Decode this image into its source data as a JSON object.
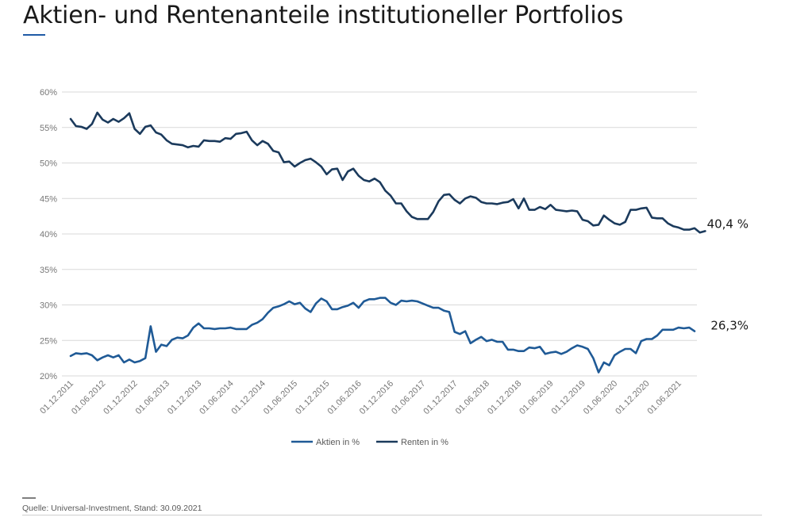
{
  "header": {
    "title": "Aktien- und Rentenanteile institutioneller Portfolios"
  },
  "footer": {
    "source": "Quelle: Universal-Investment, Stand: 30.09.2021"
  },
  "chart_data": {
    "type": "line",
    "ylabel": "",
    "xlabel": "",
    "ylim": [
      20,
      60
    ],
    "y_ticks": [
      "60%",
      "55%",
      "50%",
      "45%",
      "40%",
      "35%",
      "30%",
      "25%",
      "20%"
    ],
    "y_tick_values": [
      60,
      55,
      50,
      45,
      40,
      35,
      30,
      25,
      20
    ],
    "x_ticks": [
      "01.12.2011",
      "01.06.2012",
      "01.12.2012",
      "01.06.2013",
      "01.12.2013",
      "01.06.2014",
      "01.12.2014",
      "01.06.2015",
      "01.12.2015",
      "01.06.2016",
      "01.12.2016",
      "01.06.2017",
      "01.12.2017",
      "01.06.2018",
      "01.12.2018",
      "01.06.2019",
      "01.12.2019",
      "01.06.2020",
      "01.12.2020",
      "01.06.2021"
    ],
    "x_start": "2011-12",
    "x_end": "2021-09",
    "frequency": "monthly",
    "grid": true,
    "legend_position": "bottom",
    "series": [
      {
        "name": "Aktien in %",
        "color": "#1f5a96",
        "end_label": "26,3%",
        "values": [
          22.8,
          23.2,
          23.1,
          23.2,
          22.9,
          22.2,
          22.6,
          22.9,
          22.6,
          22.9,
          21.9,
          22.3,
          21.9,
          22.1,
          22.5,
          27.0,
          23.4,
          24.4,
          24.2,
          25.1,
          25.4,
          25.3,
          25.7,
          26.8,
          27.4,
          26.7,
          26.7,
          26.6,
          26.7,
          26.7,
          26.8,
          26.6,
          26.6,
          26.6,
          27.2,
          27.5,
          28.0,
          28.9,
          29.6,
          29.8,
          30.1,
          30.5,
          30.1,
          30.3,
          29.5,
          29.0,
          30.2,
          30.9,
          30.5,
          29.4,
          29.4,
          29.7,
          29.9,
          30.3,
          29.6,
          30.5,
          30.8,
          30.8,
          31.0,
          31.0,
          30.3,
          30.0,
          30.6,
          30.5,
          30.6,
          30.5,
          30.2,
          29.9,
          29.6,
          29.6,
          29.2,
          29.0,
          26.2,
          25.9,
          26.3,
          24.6,
          25.1,
          25.5,
          24.9,
          25.1,
          24.8,
          24.8,
          23.7,
          23.7,
          23.5,
          23.5,
          24.0,
          23.9,
          24.1,
          23.1,
          23.3,
          23.4,
          23.1,
          23.4,
          23.9,
          24.3,
          24.1,
          23.8,
          22.5,
          20.5,
          21.9,
          21.5,
          22.9,
          23.4,
          23.8,
          23.8,
          23.2,
          24.9,
          25.2,
          25.2,
          25.7,
          26.5,
          26.5,
          26.5,
          26.8,
          26.7,
          26.8,
          26.3
        ]
      },
      {
        "name": "Renten in %",
        "color": "#1b3a5c",
        "end_label": "40,4 %",
        "values": [
          56.2,
          55.2,
          55.1,
          54.8,
          55.5,
          57.1,
          56.1,
          55.7,
          56.2,
          55.8,
          56.3,
          57.0,
          54.8,
          54.1,
          55.1,
          55.3,
          54.3,
          54.0,
          53.2,
          52.7,
          52.6,
          52.5,
          52.2,
          52.4,
          52.3,
          53.2,
          53.1,
          53.1,
          53.0,
          53.5,
          53.4,
          54.1,
          54.2,
          54.4,
          53.2,
          52.5,
          53.1,
          52.7,
          51.7,
          51.5,
          50.1,
          50.2,
          49.5,
          50.0,
          50.4,
          50.6,
          50.1,
          49.5,
          48.4,
          49.1,
          49.2,
          47.6,
          48.8,
          49.2,
          48.2,
          47.6,
          47.4,
          47.8,
          47.3,
          46.1,
          45.4,
          44.3,
          44.3,
          43.2,
          42.4,
          42.1,
          42.1,
          42.1,
          43.1,
          44.6,
          45.5,
          45.6,
          44.8,
          44.3,
          45.0,
          45.3,
          45.1,
          44.5,
          44.3,
          44.3,
          44.2,
          44.4,
          44.5,
          44.9,
          43.6,
          45.0,
          43.4,
          43.4,
          43.8,
          43.5,
          44.1,
          43.4,
          43.3,
          43.2,
          43.3,
          43.2,
          42.0,
          41.8,
          41.2,
          41.3,
          42.6,
          42.0,
          41.5,
          41.3,
          41.7,
          43.4,
          43.4,
          43.6,
          43.7,
          42.3,
          42.2,
          42.2,
          41.5,
          41.1,
          40.9,
          40.6,
          40.6,
          40.8,
          40.2,
          40.4
        ]
      }
    ]
  }
}
